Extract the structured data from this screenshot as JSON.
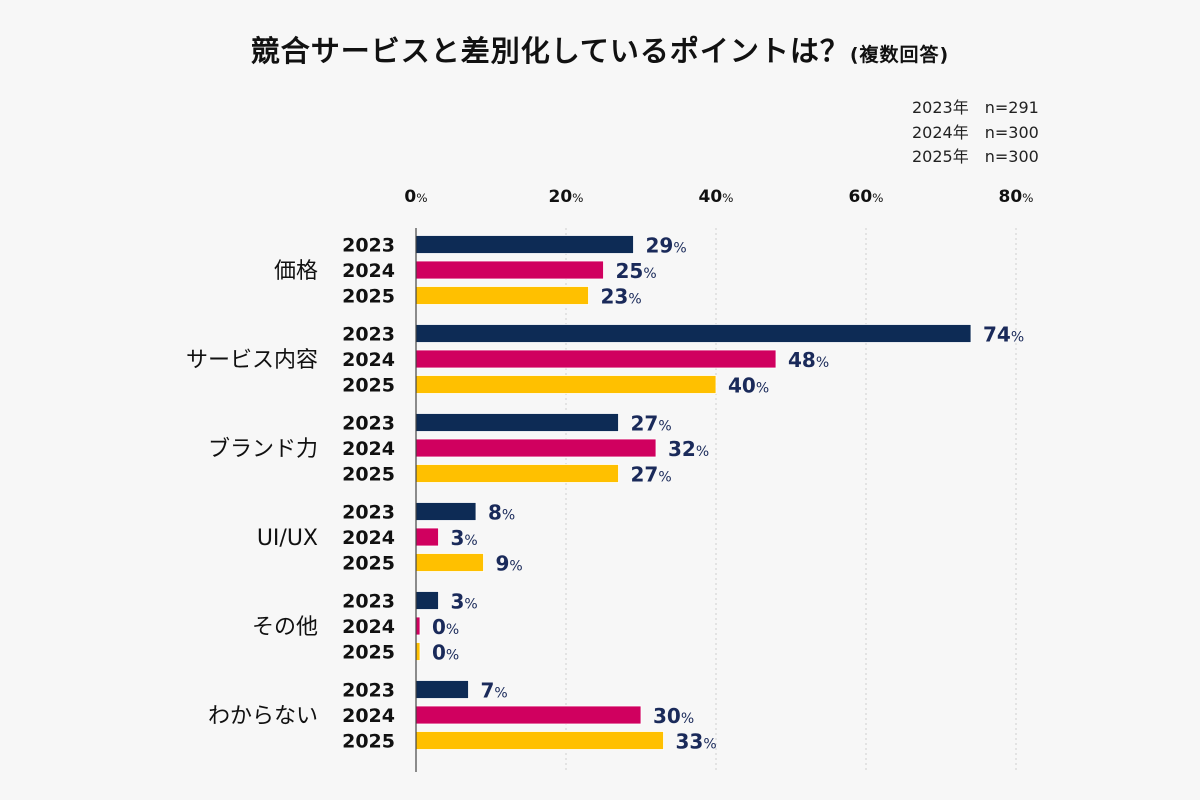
{
  "chart_data": {
    "type": "bar",
    "orientation": "horizontal",
    "title": "競合サービスと差別化しているポイントは？",
    "subtitle": "(複数回答)",
    "sample_notes": [
      "2023年　n=291",
      "2024年　n=300",
      "2025年　n=300"
    ],
    "categories": [
      "価格",
      "サービス内容",
      "ブランド力",
      "UI/UX",
      "その他",
      "わからない"
    ],
    "series": [
      {
        "name": "2023",
        "color": "#0d2b55",
        "values": [
          29,
          74,
          27,
          8,
          3,
          7
        ]
      },
      {
        "name": "2024",
        "color": "#d0005f",
        "values": [
          25,
          48,
          32,
          3,
          0,
          30
        ]
      },
      {
        "name": "2025",
        "color": "#ffc000",
        "values": [
          23,
          40,
          27,
          9,
          0,
          33
        ]
      }
    ],
    "xlim": [
      0,
      80
    ],
    "xticks": [
      0,
      20,
      40,
      60,
      80
    ],
    "tick_suffix": "%",
    "value_suffix": "%",
    "value_label_color": "#1a2a5a",
    "grid": "vertical dotted",
    "xaxis_position": "top"
  }
}
